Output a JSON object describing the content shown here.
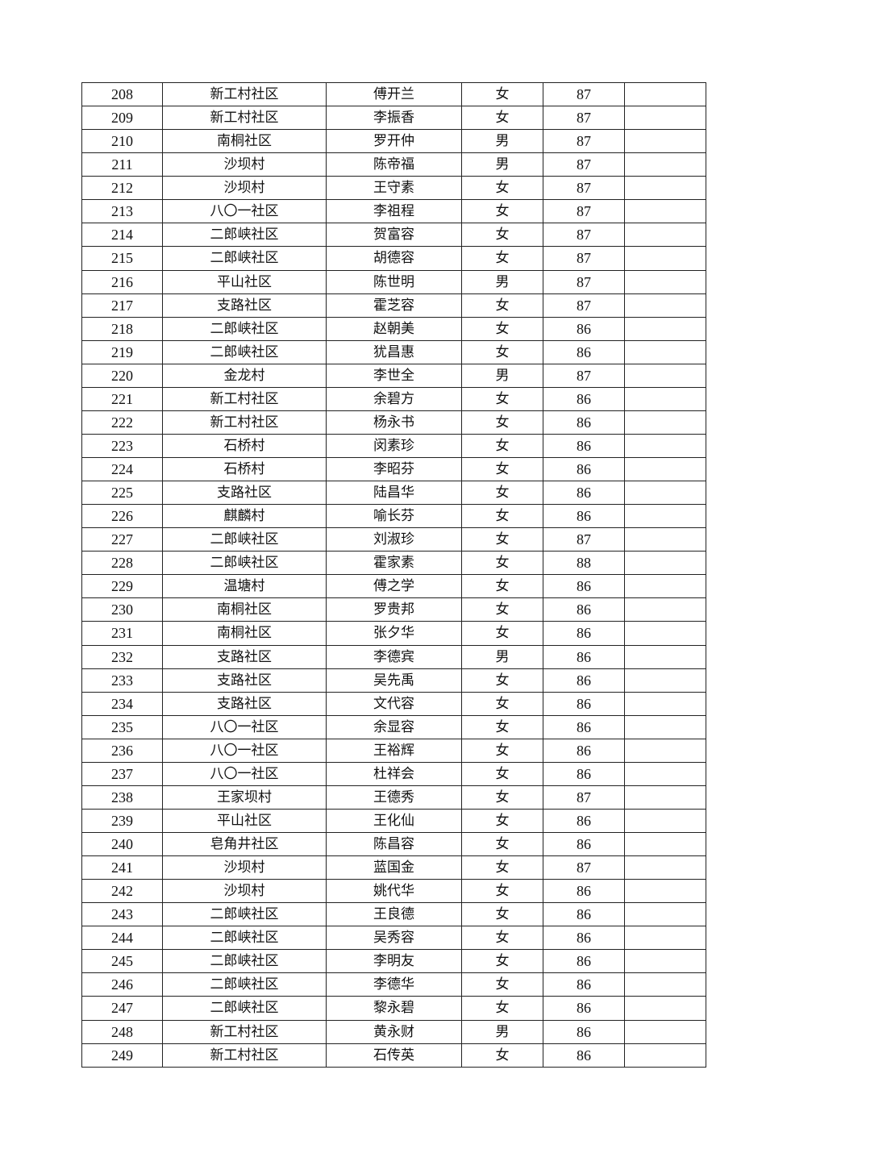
{
  "table": {
    "rows": [
      [
        "208",
        "新工村社区",
        "傅开兰",
        "女",
        "87",
        ""
      ],
      [
        "209",
        "新工村社区",
        "李振香",
        "女",
        "87",
        ""
      ],
      [
        "210",
        "南桐社区",
        "罗开仲",
        "男",
        "87",
        ""
      ],
      [
        "211",
        "沙坝村",
        "陈帝福",
        "男",
        "87",
        ""
      ],
      [
        "212",
        "沙坝村",
        "王守素",
        "女",
        "87",
        ""
      ],
      [
        "213",
        "八〇一社区",
        "李祖程",
        "女",
        "87",
        ""
      ],
      [
        "214",
        "二郎峡社区",
        "贺富容",
        "女",
        "87",
        ""
      ],
      [
        "215",
        "二郎峡社区",
        "胡德容",
        "女",
        "87",
        ""
      ],
      [
        "216",
        "平山社区",
        "陈世明",
        "男",
        "87",
        ""
      ],
      [
        "217",
        "支路社区",
        "霍芝容",
        "女",
        "87",
        ""
      ],
      [
        "218",
        "二郎峡社区",
        "赵朝美",
        "女",
        "86",
        ""
      ],
      [
        "219",
        "二郎峡社区",
        "犹昌惠",
        "女",
        "86",
        ""
      ],
      [
        "220",
        "金龙村",
        "李世全",
        "男",
        "87",
        ""
      ],
      [
        "221",
        "新工村社区",
        "余碧方",
        "女",
        "86",
        ""
      ],
      [
        "222",
        "新工村社区",
        "杨永书",
        "女",
        "86",
        ""
      ],
      [
        "223",
        "石桥村",
        "闵素珍",
        "女",
        "86",
        ""
      ],
      [
        "224",
        "石桥村",
        "李昭芬",
        "女",
        "86",
        ""
      ],
      [
        "225",
        "支路社区",
        "陆昌华",
        "女",
        "86",
        ""
      ],
      [
        "226",
        "麒麟村",
        "喻长芬",
        "女",
        "86",
        ""
      ],
      [
        "227",
        "二郎峡社区",
        "刘淑珍",
        "女",
        "87",
        ""
      ],
      [
        "228",
        "二郎峡社区",
        "霍家素",
        "女",
        "88",
        ""
      ],
      [
        "229",
        "温塘村",
        "傅之学",
        "女",
        "86",
        ""
      ],
      [
        "230",
        "南桐社区",
        "罗贵邦",
        "女",
        "86",
        ""
      ],
      [
        "231",
        "南桐社区",
        "张夕华",
        "女",
        "86",
        ""
      ],
      [
        "232",
        "支路社区",
        "李德宾",
        "男",
        "86",
        ""
      ],
      [
        "233",
        "支路社区",
        "吴先禹",
        "女",
        "86",
        ""
      ],
      [
        "234",
        "支路社区",
        "文代容",
        "女",
        "86",
        ""
      ],
      [
        "235",
        "八〇一社区",
        "余显容",
        "女",
        "86",
        ""
      ],
      [
        "236",
        "八〇一社区",
        "王裕辉",
        "女",
        "86",
        ""
      ],
      [
        "237",
        "八〇一社区",
        "杜祥会",
        "女",
        "86",
        ""
      ],
      [
        "238",
        "王家坝村",
        "王德秀",
        "女",
        "87",
        ""
      ],
      [
        "239",
        "平山社区",
        "王化仙",
        "女",
        "86",
        ""
      ],
      [
        "240",
        "皂角井社区",
        "陈昌容",
        "女",
        "86",
        ""
      ],
      [
        "241",
        "沙坝村",
        "蓝国金",
        "女",
        "87",
        ""
      ],
      [
        "242",
        "沙坝村",
        "姚代华",
        "女",
        "86",
        ""
      ],
      [
        "243",
        "二郎峡社区",
        "王良德",
        "女",
        "86",
        ""
      ],
      [
        "244",
        "二郎峡社区",
        "吴秀容",
        "女",
        "86",
        ""
      ],
      [
        "245",
        "二郎峡社区",
        "李明友",
        "女",
        "86",
        ""
      ],
      [
        "246",
        "二郎峡社区",
        "李德华",
        "女",
        "86",
        ""
      ],
      [
        "247",
        "二郎峡社区",
        "黎永碧",
        "女",
        "86",
        ""
      ],
      [
        "248",
        "新工村社区",
        "黄永财",
        "男",
        "86",
        ""
      ],
      [
        "249",
        "新工村社区",
        "石传英",
        "女",
        "86",
        ""
      ]
    ]
  }
}
